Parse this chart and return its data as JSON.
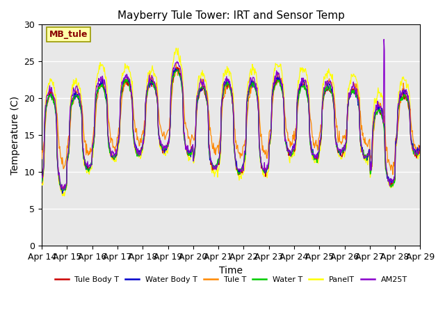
{
  "title": "Mayberry Tule Tower: IRT and Sensor Temp",
  "xlabel": "Time",
  "ylabel": "Temperature (C)",
  "ylim": [
    0,
    30
  ],
  "x_tick_labels": [
    "Apr 14",
    "Apr 15",
    "Apr 16",
    "Apr 17",
    "Apr 18",
    "Apr 19",
    "Apr 20",
    "Apr 21",
    "Apr 22",
    "Apr 23",
    "Apr 24",
    "Apr 25",
    "Apr 26",
    "Apr 27",
    "Apr 28",
    "Apr 29"
  ],
  "series_colors": {
    "Tule Body T": "#cc0000",
    "Water Body T": "#0000cc",
    "Tule T": "#ff8800",
    "Water T": "#00cc00",
    "PanelT": "#ffff00",
    "AM25T": "#8800cc"
  },
  "legend_label": "MB_tule",
  "background_color": "#e8e8e8",
  "yticks": [
    0,
    5,
    10,
    15,
    20,
    25,
    30
  ],
  "n_days": 15,
  "n_per_day": 48
}
